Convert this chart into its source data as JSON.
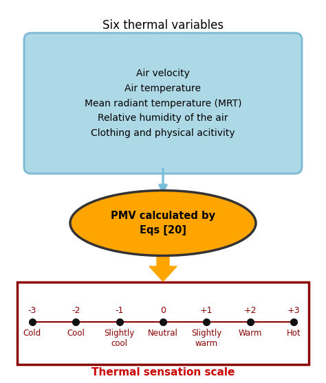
{
  "title": "Six thermal variables",
  "box_lines": [
    "Air velocity",
    "Air temperature",
    "Mean radiant temperature (MRT)",
    "Relative humidity of the air",
    "Clothing and physical acitivity"
  ],
  "box_color": "#ADD8E6",
  "box_border_color": "#7BB8D4",
  "ellipse_text": "PMV calculated by\nEqs [20]",
  "ellipse_color": "#FFA500",
  "ellipse_border_color": "#333333",
  "arrow_color_blue": "#7BBFDD",
  "arrow_color_orange": "#FFA500",
  "scale_border_color": "#8B0000",
  "scale_dot_color": "#111111",
  "scale_line_color": "#8B0000",
  "scale_numbers": [
    "-3",
    "-2",
    "-1",
    "0",
    "+1",
    "+2",
    "+3"
  ],
  "scale_labels": [
    "Cold",
    "Cool",
    "Slightly\ncool",
    "Neutral",
    "Slightly\nwarm",
    "Warm",
    "Hot"
  ],
  "scale_label_color": "#8B0000",
  "thermal_sensation_label": "Thermal sensation scale",
  "thermal_sensation_color": "#CC0000",
  "background_color": "#FFFFFF"
}
